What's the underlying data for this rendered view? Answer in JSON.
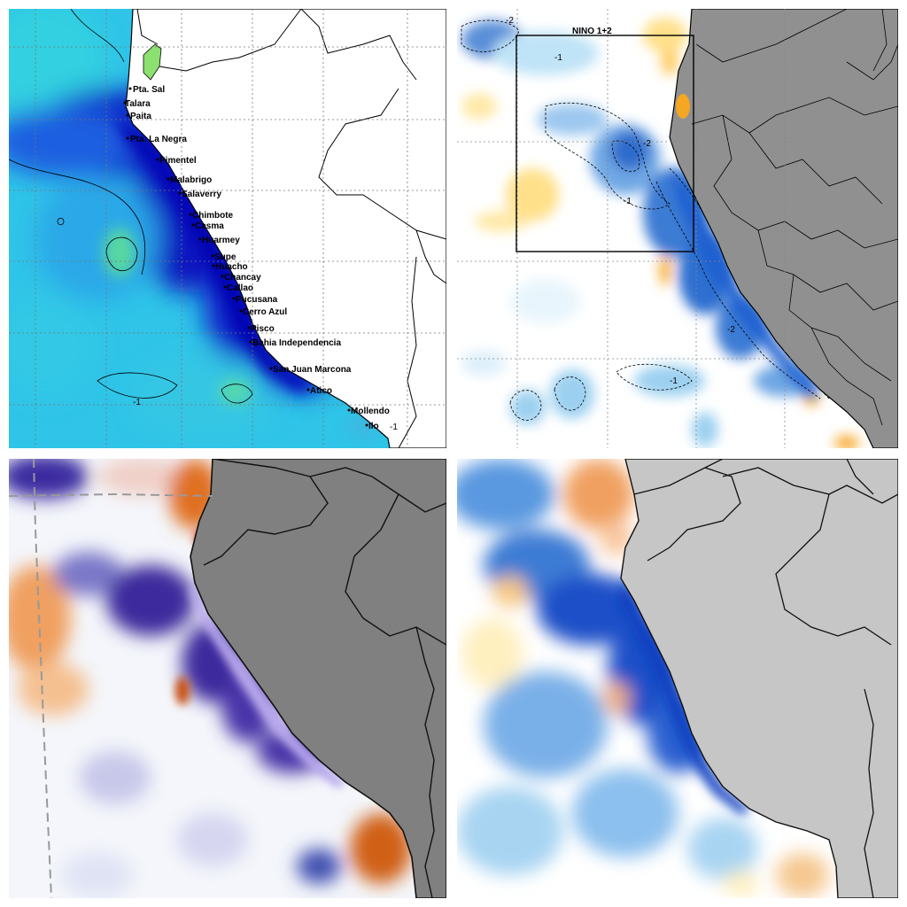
{
  "panels": [
    {
      "id": "top-left",
      "place_labels": [
        "Pta. Sal",
        "Talara",
        "Paita",
        "Pta. La Negra",
        "Pimentel",
        "Malabrigo",
        "Salaverry",
        "Chimbote",
        "Casma",
        "Huarmey",
        "Supe",
        "Huacho",
        "Chancay",
        "Callao",
        "Pucusana",
        "Cerro Azul",
        "Pisco",
        "Bahia Independencia",
        "San Juan Marcona",
        "Atico",
        "Mollendo",
        "Ilo"
      ],
      "contour_labels": [
        "-1",
        "-1"
      ],
      "colors": {
        "ocean": "#2fc4e8",
        "cold": "#0a14c8",
        "warm": "#7ee89a",
        "land": "#ffffff"
      }
    },
    {
      "id": "top-right",
      "region_label": "NINO  1+2",
      "contour_labels": [
        "-2",
        "-1",
        "-2",
        "-1",
        "-2",
        "-1"
      ],
      "colors": {
        "ocean": "#ffffff",
        "cold": "#1f5fd0",
        "warm": "#f5a623",
        "land": "#909090"
      }
    },
    {
      "id": "bottom-left",
      "colors": {
        "ocean": "#f4f6fb",
        "cold": "#3c2a9c",
        "warm": "#e07020",
        "land": "#808080"
      }
    },
    {
      "id": "bottom-right",
      "colors": {
        "ocean": "#ffffff",
        "cold": "#1a4fc8",
        "warm": "#f0a050",
        "land": "#c6c6c6"
      }
    }
  ]
}
